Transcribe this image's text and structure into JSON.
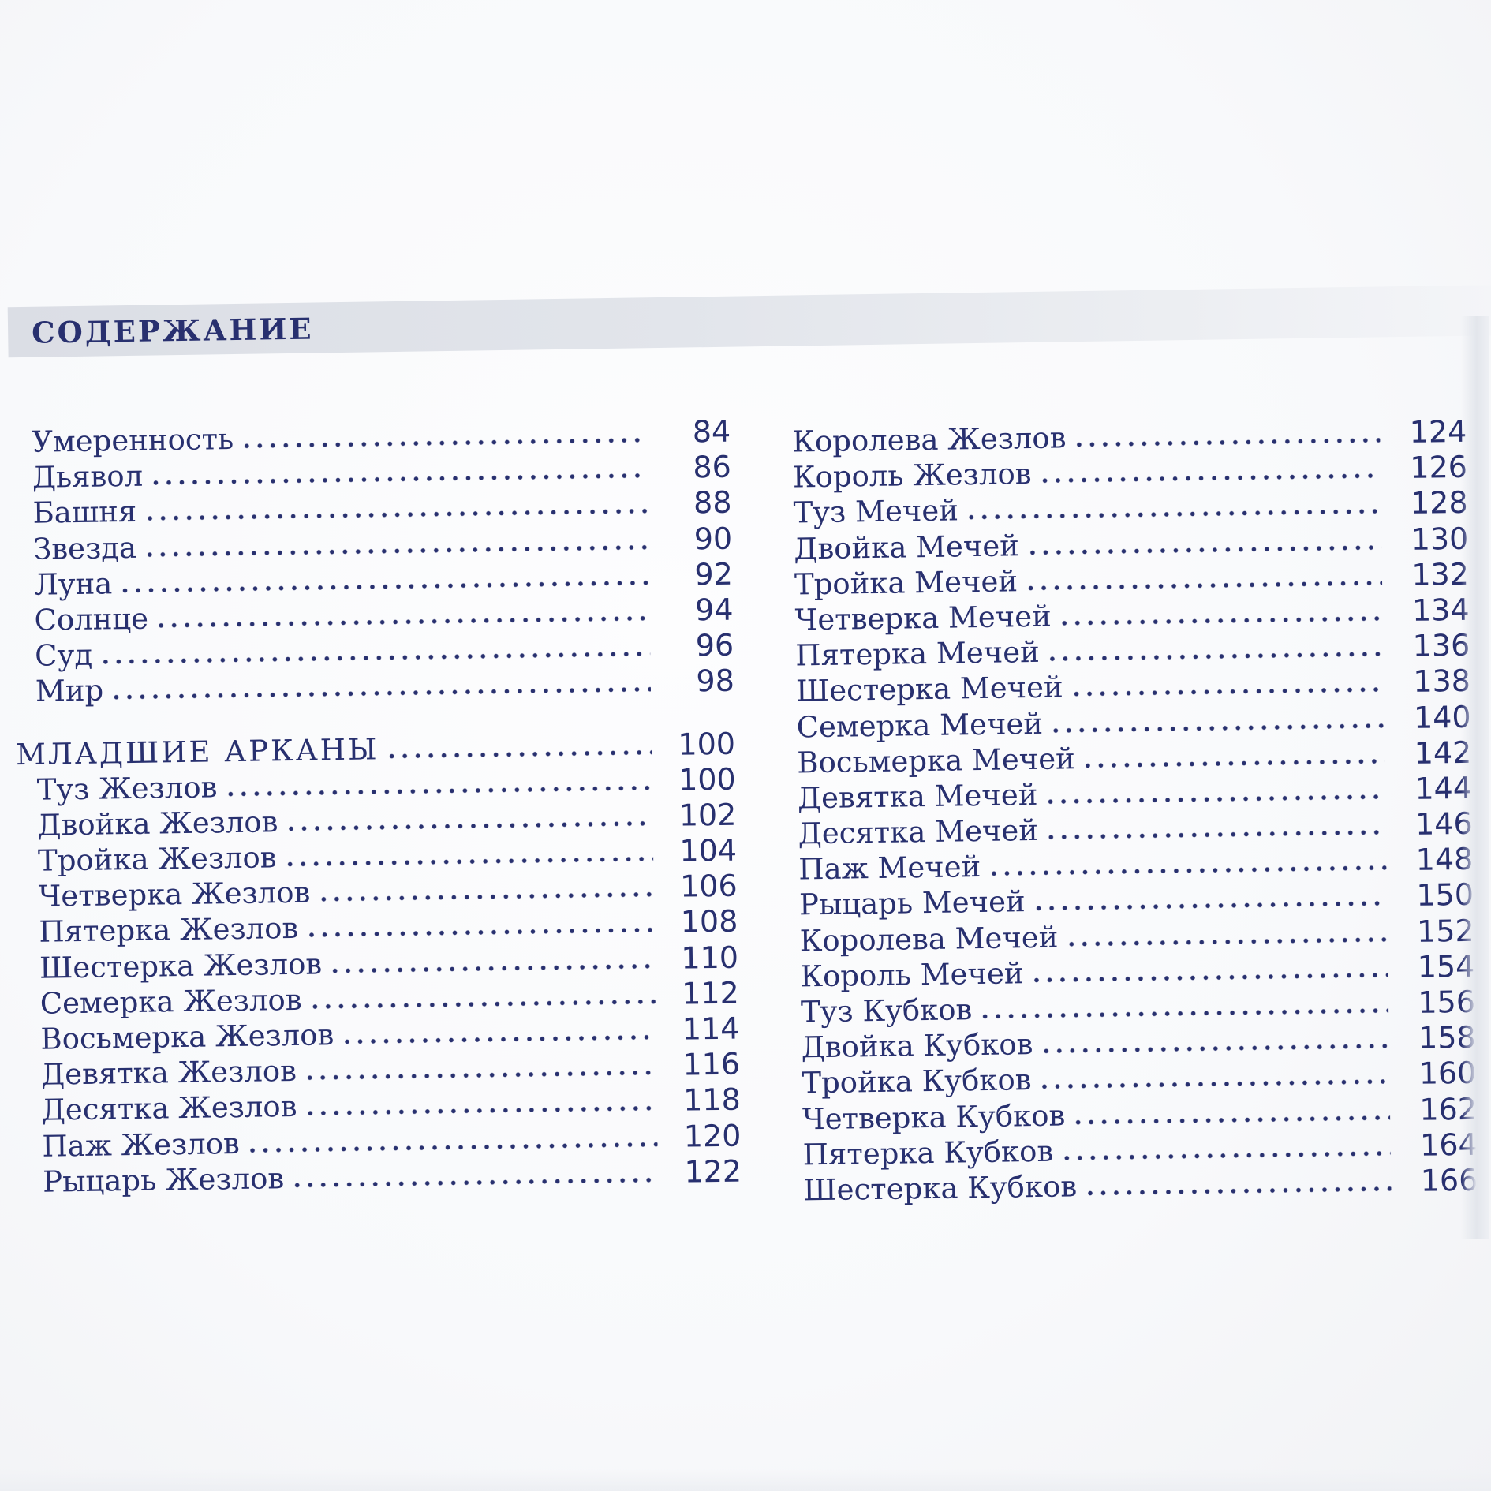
{
  "page_title": "СОДЕРЖАНИЕ",
  "colors": {
    "ink": "#28306f",
    "band": "#dde0e7",
    "paper": "#fbfcfd"
  },
  "toc": {
    "left_column": {
      "entries": [
        {
          "label": "Умеренность",
          "page": "84",
          "type": "entry"
        },
        {
          "label": "Дьявол",
          "page": "86",
          "type": "entry"
        },
        {
          "label": "Башня",
          "page": "88",
          "type": "entry"
        },
        {
          "label": "Звезда",
          "page": "90",
          "type": "entry"
        },
        {
          "label": "Луна",
          "page": "92",
          "type": "entry"
        },
        {
          "label": "Солнце",
          "page": "94",
          "type": "entry"
        },
        {
          "label": "Суд",
          "page": "96",
          "type": "entry"
        },
        {
          "label": "Мир",
          "page": "98",
          "type": "entry"
        },
        {
          "label": "МЛАДШИЕ АРКАНЫ",
          "page": "100",
          "type": "section"
        },
        {
          "label": "Туз Жезлов",
          "page": "100",
          "type": "entry"
        },
        {
          "label": "Двойка Жезлов",
          "page": "102",
          "type": "entry"
        },
        {
          "label": "Тройка Жезлов",
          "page": "104",
          "type": "entry"
        },
        {
          "label": "Четверка Жезлов",
          "page": "106",
          "type": "entry"
        },
        {
          "label": "Пятерка Жезлов",
          "page": "108",
          "type": "entry"
        },
        {
          "label": "Шестерка Жезлов",
          "page": "110",
          "type": "entry"
        },
        {
          "label": "Семерка Жезлов",
          "page": "112",
          "type": "entry"
        },
        {
          "label": "Восьмерка Жезлов",
          "page": "114",
          "type": "entry"
        },
        {
          "label": "Девятка Жезлов",
          "page": "116",
          "type": "entry"
        },
        {
          "label": "Десятка Жезлов",
          "page": "118",
          "type": "entry"
        },
        {
          "label": "Паж Жезлов",
          "page": "120",
          "type": "entry"
        },
        {
          "label": "Рыцарь Жезлов",
          "page": "122",
          "type": "entry"
        }
      ]
    },
    "right_column": {
      "entries": [
        {
          "label": "Королева Жезлов",
          "page": "124",
          "type": "entry"
        },
        {
          "label": "Король Жезлов",
          "page": "126",
          "type": "entry"
        },
        {
          "label": "Туз Мечей",
          "page": "128",
          "type": "entry"
        },
        {
          "label": "Двойка Мечей",
          "page": "130",
          "type": "entry"
        },
        {
          "label": "Тройка Мечей",
          "page": "132",
          "type": "entry"
        },
        {
          "label": "Четверка Мечей",
          "page": "134",
          "type": "entry"
        },
        {
          "label": "Пятерка Мечей",
          "page": "136",
          "type": "entry"
        },
        {
          "label": "Шестерка Мечей",
          "page": "138",
          "type": "entry"
        },
        {
          "label": "Семерка Мечей",
          "page": "140",
          "type": "entry"
        },
        {
          "label": "Восьмерка Мечей",
          "page": "142",
          "type": "entry"
        },
        {
          "label": "Девятка Мечей",
          "page": "144",
          "type": "entry"
        },
        {
          "label": "Десятка Мечей",
          "page": "146",
          "type": "entry"
        },
        {
          "label": "Паж Мечей",
          "page": "148",
          "type": "entry"
        },
        {
          "label": "Рыцарь Мечей",
          "page": "150",
          "type": "entry"
        },
        {
          "label": "Королева Мечей",
          "page": "152",
          "type": "entry"
        },
        {
          "label": "Король Мечей",
          "page": "154",
          "type": "entry"
        },
        {
          "label": "Туз Кубков",
          "page": "156",
          "type": "entry"
        },
        {
          "label": "Двойка Кубков",
          "page": "158",
          "type": "entry"
        },
        {
          "label": "Тройка Кубков",
          "page": "160",
          "type": "entry"
        },
        {
          "label": "Четверка Кубков",
          "page": "162",
          "type": "entry"
        },
        {
          "label": "Пятерка Кубков",
          "page": "164",
          "type": "entry"
        },
        {
          "label": "Шестерка Кубков",
          "page": "166",
          "type": "entry"
        }
      ]
    }
  }
}
